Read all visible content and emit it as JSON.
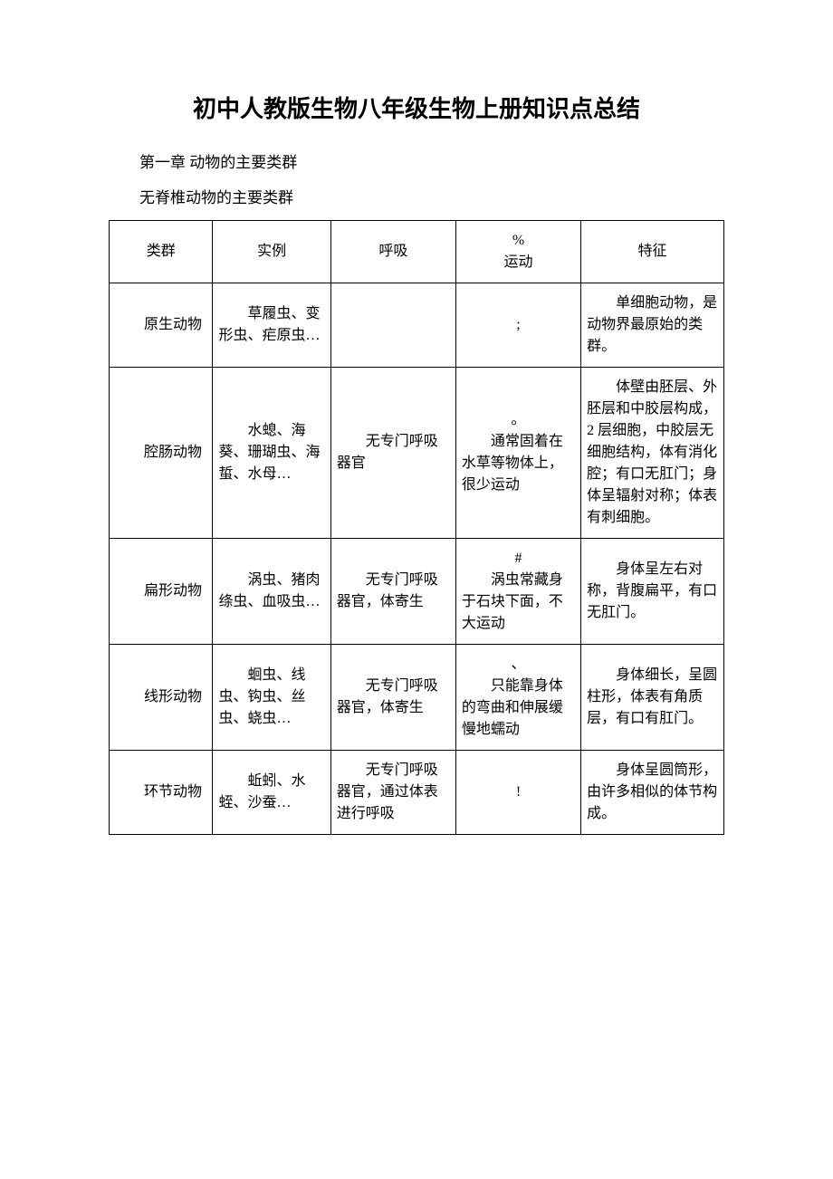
{
  "title": "初中人教版生物八年级生物上册知识点总结",
  "section1": "第一章 动物的主要类群",
  "section2": "无脊椎动物的主要类群",
  "watermark": "",
  "table": {
    "header": {
      "c1": "类群",
      "c2": "实例",
      "c3": "呼吸",
      "c4_top": "%",
      "c4": "运动",
      "c5": "特征"
    },
    "rows": [
      {
        "c1": "原生动物",
        "c2": "草履虫、变形虫、疟原虫…",
        "c3": "",
        "c4_sym": ";",
        "c4": "",
        "c5": "单细胞动物，是动物界最原始的类群。"
      },
      {
        "c1": "腔肠动物",
        "c2": "水螅、海葵、珊瑚虫、海蜇、水母…",
        "c3": "无专门呼吸器官",
        "c4_sym": "。",
        "c4": "通常固着在水草等物体上，很少运动",
        "c5": "体壁由胚层、外胚层和中胶层构成，2 层细胞，中胶层无细胞结构，体有消化腔；有口无肛门；身体呈辐射对称；体表有刺细胞。"
      },
      {
        "c1": "扁形动物",
        "c2": "涡虫、猪肉绦虫、血吸虫…",
        "c3": "无专门呼吸器官，体寄生",
        "c4_sym": "#",
        "c4": "涡虫常藏身于石块下面，不大运动",
        "c5": "身体呈左右对称，背腹扁平，有口无肛门。"
      },
      {
        "c1": "线形动物",
        "c2": "蛔虫、线虫、钩虫、丝虫、蛲虫…",
        "c3": "无专门呼吸器官，体寄生",
        "c4_sym": "、",
        "c4": "只能靠身体的弯曲和伸展缓慢地蠕动",
        "c5": "身体细长，呈圆柱形，体表有角质层，有口有肛门。"
      },
      {
        "c1": "环节动物",
        "c2": "蚯蚓、水蛭、沙蚕…",
        "c3": "无专门呼吸器官，通过体表进行呼吸",
        "c4_sym": "!",
        "c4": "",
        "c5": "身体呈圆筒形，由许多相似的体节构成。"
      }
    ]
  }
}
